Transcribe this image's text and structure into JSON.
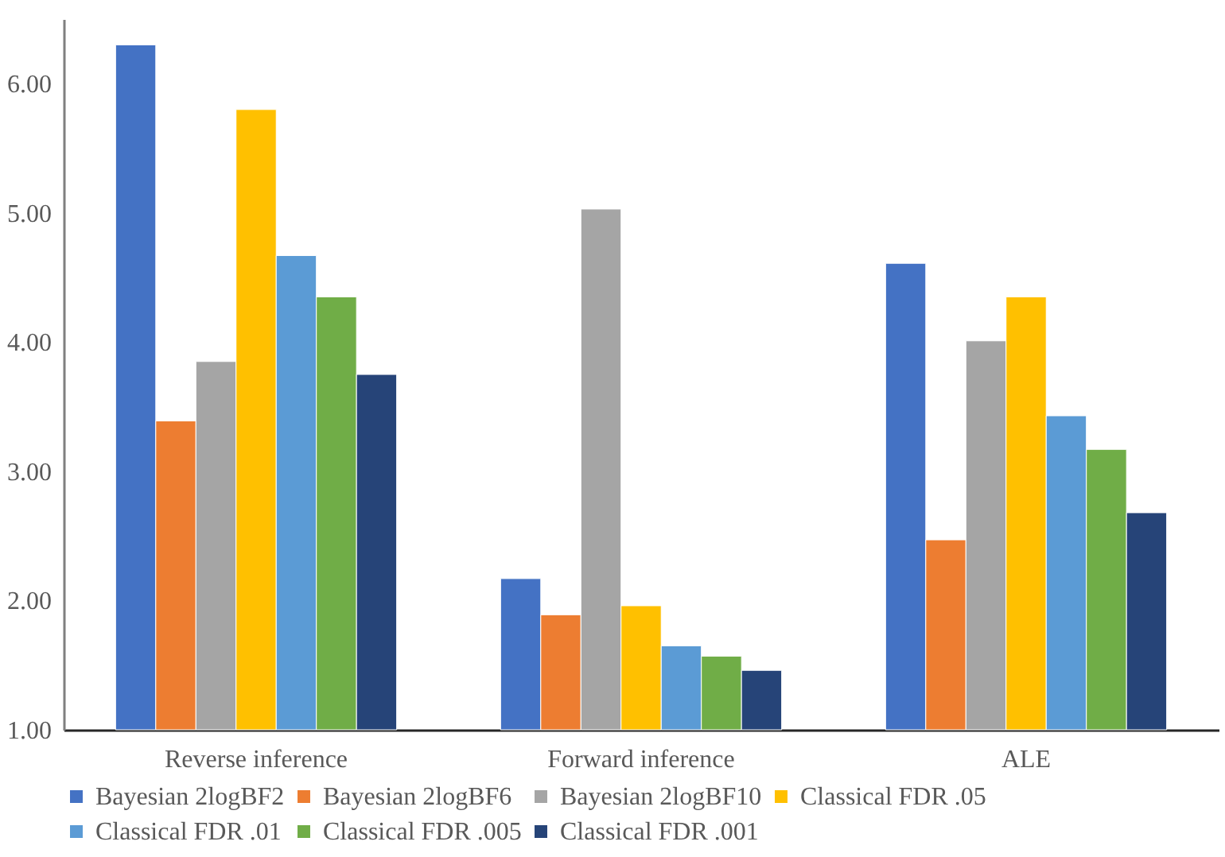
{
  "chart_data": {
    "type": "bar",
    "categories": [
      "Reverse inference",
      "Forward inference",
      "ALE"
    ],
    "series": [
      {
        "name": "Bayesian 2logBF2",
        "color": "#4472c4",
        "values": [
          6.3,
          2.17,
          4.61
        ]
      },
      {
        "name": "Bayesian 2logBF6",
        "color": "#ed7d31",
        "values": [
          3.39,
          1.89,
          2.47
        ]
      },
      {
        "name": "Bayesian 2logBF10",
        "color": "#a5a5a5",
        "values": [
          3.85,
          5.03,
          4.01
        ]
      },
      {
        "name": "Classical FDR .05",
        "color": "#ffc000",
        "values": [
          5.8,
          1.96,
          4.35
        ]
      },
      {
        "name": "Classical FDR .01",
        "color": "#5b9bd5",
        "values": [
          4.67,
          1.65,
          3.43
        ]
      },
      {
        "name": "Classical FDR .005",
        "color": "#70ad47",
        "values": [
          4.35,
          1.57,
          3.17
        ]
      },
      {
        "name": "Classical FDR .001",
        "color": "#264478",
        "values": [
          3.75,
          1.46,
          2.68
        ]
      }
    ],
    "ylim": [
      1,
      6.5
    ],
    "yticks": [
      {
        "value": 1,
        "label": "1.00"
      },
      {
        "value": 2,
        "label": "2.00"
      },
      {
        "value": 3,
        "label": "3.00"
      },
      {
        "value": 4,
        "label": "4.00"
      },
      {
        "value": 5,
        "label": "5.00"
      },
      {
        "value": 6,
        "label": "6.00"
      }
    ],
    "grid": false,
    "legend": "bottom"
  }
}
